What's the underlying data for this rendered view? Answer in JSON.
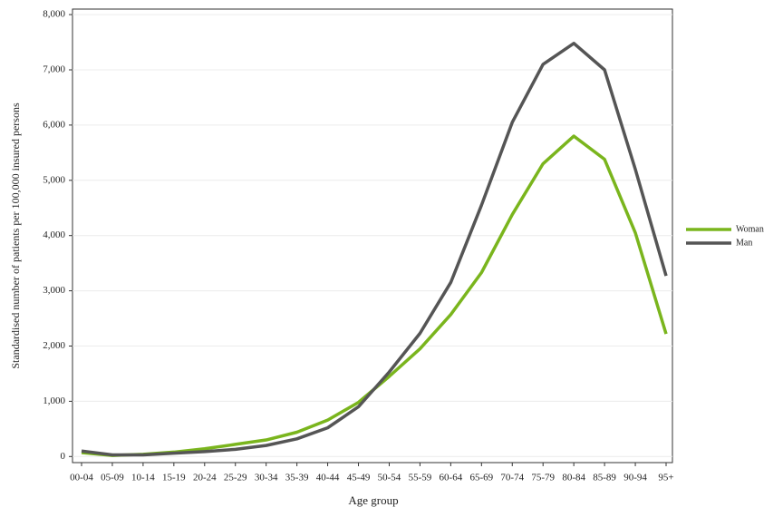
{
  "chart_data": {
    "type": "line",
    "x_label": "Age group",
    "y_label": "Standardised number of patients per 100,000 insured persons",
    "categories": [
      "00-04",
      "05-09",
      "10-14",
      "15-19",
      "20-24",
      "25-29",
      "30-34",
      "35-39",
      "40-44",
      "45-49",
      "50-54",
      "55-59",
      "60-64",
      "65-69",
      "70-74",
      "75-79",
      "80-84",
      "85-89",
      "90-94",
      "95+"
    ],
    "series": [
      {
        "name": "Woman",
        "color": "#7ab51d",
        "values": [
          70,
          20,
          40,
          80,
          140,
          220,
          300,
          440,
          660,
          980,
          1450,
          1950,
          2570,
          3330,
          4380,
          5300,
          5800,
          5380,
          4050,
          2220
        ]
      },
      {
        "name": "Man",
        "color": "#555555",
        "values": [
          100,
          30,
          30,
          60,
          90,
          130,
          200,
          320,
          520,
          900,
          1530,
          2230,
          3150,
          4550,
          6050,
          7100,
          7480,
          7000,
          5200,
          3270
        ]
      }
    ],
    "ylim": [
      -110,
      8100
    ],
    "yticks": [
      0,
      {
        "value": 1000,
        "label": "1,000"
      },
      {
        "value": 2000,
        "label": "2,000"
      },
      {
        "value": 3000,
        "label": "3,000"
      },
      {
        "value": 4000,
        "label": "4,000"
      },
      {
        "value": 5000,
        "label": "5,000"
      },
      {
        "value": 6000,
        "label": "6,000"
      },
      {
        "value": 7000,
        "label": "7,000"
      },
      {
        "value": 8000,
        "label": "8,000"
      }
    ],
    "grid": true,
    "legend": "right"
  }
}
